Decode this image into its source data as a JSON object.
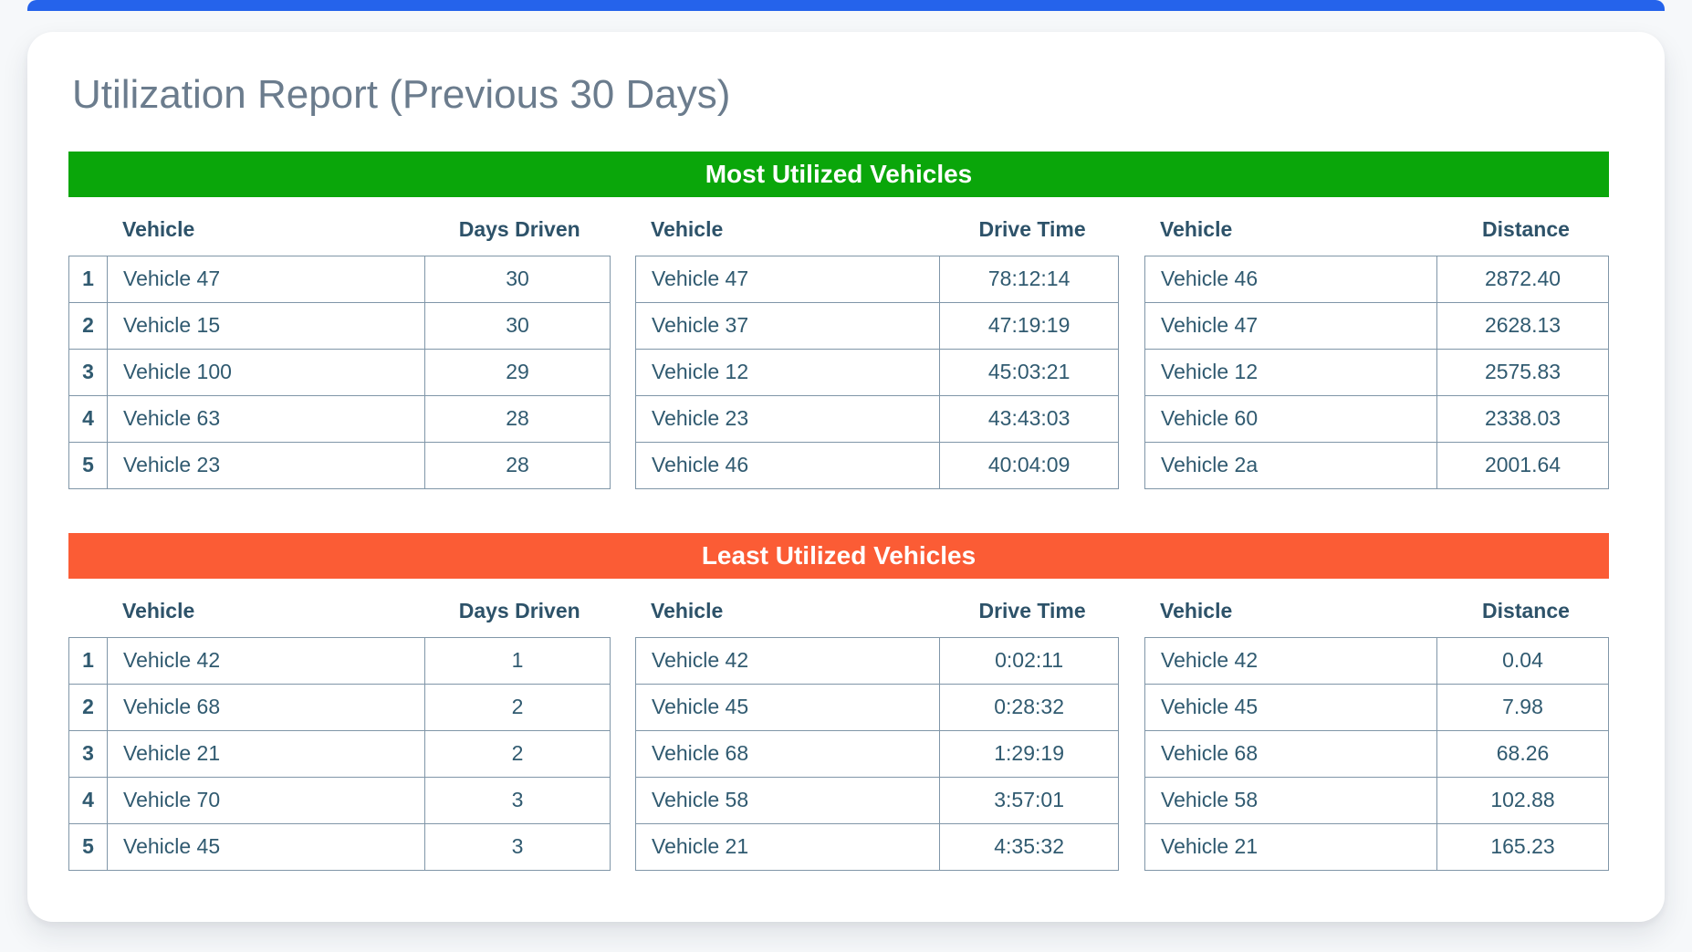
{
  "page": {
    "title": "Utilization Report (Previous 30 Days)"
  },
  "colors": {
    "top_bar": "#2563EB",
    "most_accent": "#0AA60A",
    "least_accent": "#FB5C35",
    "title_text": "#6B7C8D",
    "header_text": "#2D5269",
    "table_text": "#305A70",
    "cell_border": "#8096A8"
  },
  "sections": [
    {
      "title": "Most Utilized Vehicles",
      "accent": "#0AA60A",
      "ranks": [
        "1",
        "2",
        "3",
        "4",
        "5"
      ],
      "tables": [
        {
          "columns": [
            "Vehicle",
            "Days Driven"
          ],
          "rows": [
            [
              "Vehicle 47",
              "30"
            ],
            [
              "Vehicle 15",
              "30"
            ],
            [
              "Vehicle 100",
              "29"
            ],
            [
              "Vehicle 63",
              "28"
            ],
            [
              "Vehicle 23",
              "28"
            ]
          ]
        },
        {
          "columns": [
            "Vehicle",
            "Drive Time"
          ],
          "rows": [
            [
              "Vehicle 47",
              "78:12:14"
            ],
            [
              "Vehicle 37",
              "47:19:19"
            ],
            [
              "Vehicle 12",
              "45:03:21"
            ],
            [
              "Vehicle 23",
              "43:43:03"
            ],
            [
              "Vehicle 46",
              "40:04:09"
            ]
          ]
        },
        {
          "columns": [
            "Vehicle",
            "Distance"
          ],
          "rows": [
            [
              "Vehicle 46",
              "2872.40"
            ],
            [
              "Vehicle 47",
              "2628.13"
            ],
            [
              "Vehicle 12",
              "2575.83"
            ],
            [
              "Vehicle 60",
              "2338.03"
            ],
            [
              "Vehicle 2a",
              "2001.64"
            ]
          ]
        }
      ]
    },
    {
      "title": "Least Utilized Vehicles",
      "accent": "#FB5C35",
      "ranks": [
        "1",
        "2",
        "3",
        "4",
        "5"
      ],
      "tables": [
        {
          "columns": [
            "Vehicle",
            "Days Driven"
          ],
          "rows": [
            [
              "Vehicle 42",
              "1"
            ],
            [
              "Vehicle 68",
              "2"
            ],
            [
              "Vehicle 21",
              "2"
            ],
            [
              "Vehicle 70",
              "3"
            ],
            [
              "Vehicle 45",
              "3"
            ]
          ]
        },
        {
          "columns": [
            "Vehicle",
            "Drive Time"
          ],
          "rows": [
            [
              "Vehicle 42",
              "0:02:11"
            ],
            [
              "Vehicle 45",
              "0:28:32"
            ],
            [
              "Vehicle 68",
              "1:29:19"
            ],
            [
              "Vehicle 58",
              "3:57:01"
            ],
            [
              "Vehicle 21",
              "4:35:32"
            ]
          ]
        },
        {
          "columns": [
            "Vehicle",
            "Distance"
          ],
          "rows": [
            [
              "Vehicle 42",
              "0.04"
            ],
            [
              "Vehicle 45",
              "7.98"
            ],
            [
              "Vehicle 68",
              "68.26"
            ],
            [
              "Vehicle 58",
              "102.88"
            ],
            [
              "Vehicle 21",
              "165.23"
            ]
          ]
        }
      ]
    }
  ]
}
